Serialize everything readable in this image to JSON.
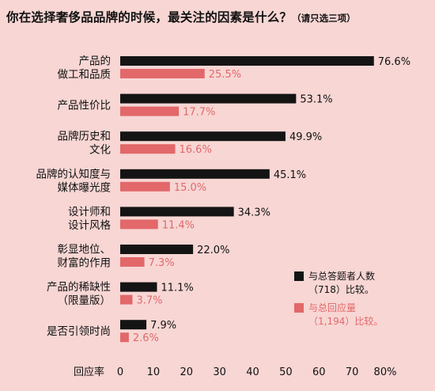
{
  "title": {
    "main": "你在选择奢侈品品牌的时候，最关注的因素是什么？",
    "sub": "（请只选三项）"
  },
  "legend": [
    {
      "lines": [
        "与总答题者人数",
        "（718）比较。"
      ],
      "color": "#141414"
    },
    {
      "lines": [
        "与总回应量",
        "（1,194）比较。"
      ],
      "color": "#e2686a"
    }
  ],
  "colors": {
    "series1": "#141414",
    "series2": "#e2686a",
    "background": "#f7d6d4"
  },
  "chart_data": {
    "type": "bar",
    "orientation": "horizontal",
    "categories": [
      [
        "产品的",
        "做工和品质"
      ],
      [
        "产品性价比"
      ],
      [
        "品牌历史和",
        "文化"
      ],
      [
        "品牌的认知度与",
        "媒体曝光度"
      ],
      [
        "设计师和",
        "设计风格"
      ],
      [
        "彰显地位、",
        "财富的作用"
      ],
      [
        "产品的稀缺性",
        "（限量版）"
      ],
      [
        "是否引领时尚"
      ]
    ],
    "series": [
      {
        "name": "与总答题者人数（718）比较。",
        "values": [
          76.6,
          53.1,
          49.9,
          45.1,
          34.3,
          22.0,
          11.1,
          7.9
        ],
        "labels": [
          "76.6%",
          "53.1%",
          "49.9%",
          "45.1%",
          "34.3%",
          "22.0%",
          "11.1%",
          "7.9%"
        ]
      },
      {
        "name": "与总回应量（1,194）比较。",
        "values": [
          25.5,
          17.7,
          16.6,
          15.0,
          11.4,
          7.3,
          3.7,
          2.6
        ],
        "labels": [
          "25.5%",
          "17.7%",
          "16.6%",
          "15.0%",
          "11.4%",
          "7.3%",
          "3.7%",
          "2.6%"
        ]
      }
    ],
    "xlabel": "回应率",
    "xlim": [
      0,
      80
    ],
    "xticks": [
      "0",
      "10",
      "20",
      "30",
      "40",
      "50",
      "60",
      "70",
      "80%"
    ],
    "xtick_values": [
      0,
      10,
      20,
      30,
      40,
      50,
      60,
      70,
      80
    ],
    "grid": false,
    "legend_position": "bottom-right"
  }
}
